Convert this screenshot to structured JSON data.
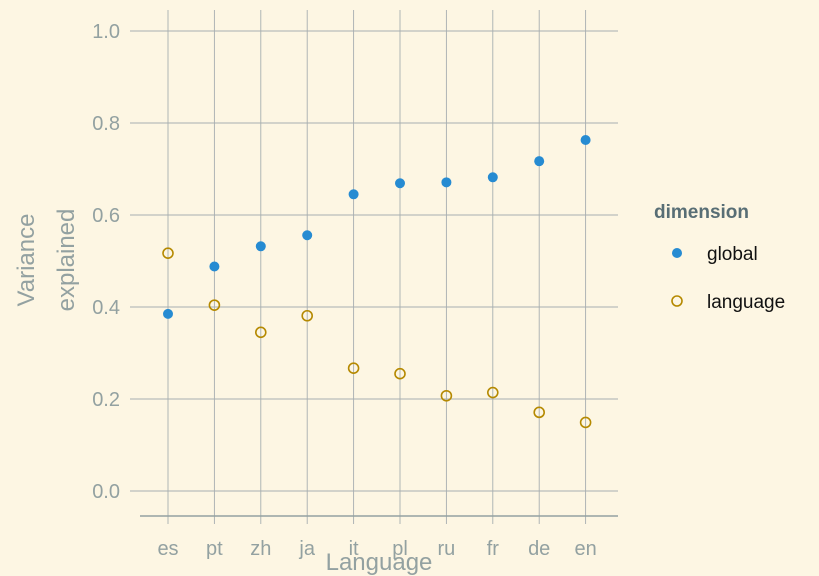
{
  "chart_data": {
    "type": "scatter",
    "xlabel": "Language",
    "ylabel_lines": [
      "Variance",
      "explained"
    ],
    "categories": [
      "es",
      "pt",
      "zh",
      "ja",
      "it",
      "pl",
      "ru",
      "fr",
      "de",
      "en"
    ],
    "ylim": [
      0.0,
      1.0
    ],
    "yticks": [
      "0.0",
      "0.2",
      "0.4",
      "0.6",
      "0.8",
      "1.0"
    ],
    "grid": true,
    "legend": {
      "title": "dimension",
      "position": "right"
    },
    "series": [
      {
        "name": "global",
        "marker": "filled-circle",
        "color": "#268bd2",
        "values": [
          0.385,
          0.488,
          0.532,
          0.556,
          0.645,
          0.669,
          0.671,
          0.682,
          0.717,
          0.763
        ]
      },
      {
        "name": "language",
        "marker": "open-circle",
        "color": "#b58900",
        "values": [
          0.517,
          0.404,
          0.345,
          0.381,
          0.267,
          0.255,
          0.207,
          0.214,
          0.171,
          0.149
        ]
      }
    ]
  }
}
